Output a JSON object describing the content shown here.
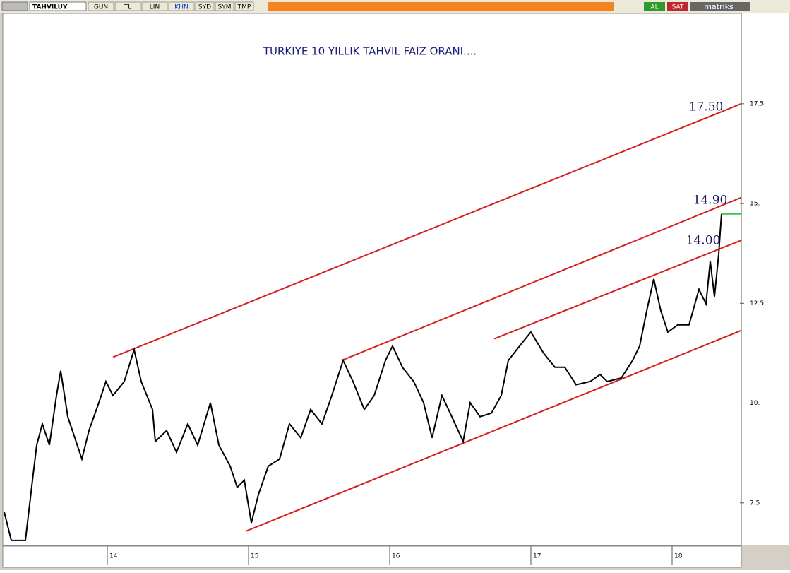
{
  "toolbar": {
    "symbol": "TAHVILUY",
    "buttons": [
      "GUN",
      "TL",
      "LIN",
      "KHN",
      "SYD",
      "SYM",
      "TMP"
    ],
    "buy": "AL",
    "sell": "SAT",
    "brand": "matriks"
  },
  "chart_data": {
    "type": "line",
    "title": "TURKIYE 10 YILLIK TAHVIL FAIZ ORANI....",
    "x": [
      13.27,
      13.32,
      13.42,
      13.47,
      13.5,
      13.54,
      13.59,
      13.64,
      13.67,
      13.72,
      13.77,
      13.82,
      13.87,
      13.94,
      13.99,
      14.04,
      14.12,
      14.19,
      14.24,
      14.32,
      14.34,
      14.42,
      14.49,
      14.57,
      14.64,
      14.73,
      14.79,
      14.87,
      14.92,
      14.97,
      15.02,
      15.07,
      15.14,
      15.22,
      15.29,
      15.37,
      15.44,
      15.52,
      15.59,
      15.67,
      15.74,
      15.82,
      15.89,
      15.97,
      16.02,
      16.09,
      16.17,
      16.24,
      16.3,
      16.37,
      16.44,
      16.52,
      16.57,
      16.64,
      16.72,
      16.79,
      16.84,
      16.92,
      17.0,
      17.09,
      17.17,
      17.24,
      17.32,
      17.42,
      17.49,
      17.54,
      17.64,
      17.72,
      17.77,
      17.82,
      17.87,
      17.92,
      17.97,
      18.04,
      18.12,
      18.19,
      18.24,
      18.27,
      18.3,
      18.33,
      18.34,
      18.35
    ],
    "series": [
      {
        "color": "#000000",
        "values": [
          7.27,
          6.56,
          6.56,
          8.07,
          8.95,
          9.48,
          8.95,
          10.19,
          10.81,
          9.66,
          9.13,
          8.6,
          9.31,
          10.01,
          10.54,
          10.19,
          10.54,
          11.34,
          10.54,
          9.84,
          9.04,
          9.31,
          8.77,
          9.48,
          8.95,
          10.01,
          8.95,
          8.42,
          7.89,
          8.07,
          7.0,
          7.71,
          8.42,
          8.6,
          9.48,
          9.13,
          9.84,
          9.48,
          10.19,
          11.07,
          10.54,
          9.84,
          10.19,
          11.07,
          11.43,
          10.9,
          10.54,
          10.01,
          9.13,
          10.19,
          9.66,
          9.04,
          10.01,
          9.66,
          9.75,
          10.19,
          11.07,
          11.43,
          11.78,
          11.25,
          10.9,
          10.9,
          10.46,
          10.54,
          10.72,
          10.54,
          10.63,
          11.07,
          11.43,
          12.31,
          13.11,
          12.31,
          11.78,
          11.96,
          11.96,
          12.85,
          12.49,
          13.55,
          12.67,
          13.73,
          14.26,
          14.74
        ]
      }
    ],
    "trendlines": [
      {
        "color": "#d42020",
        "x": [
          14.04,
          18.49
        ],
        "values": [
          11.15,
          17.5
        ]
      },
      {
        "color": "#d42020",
        "x": [
          15.66,
          18.49
        ],
        "values": [
          11.07,
          15.15
        ]
      },
      {
        "color": "#d42020",
        "x": [
          16.74,
          18.49
        ],
        "values": [
          11.61,
          14.08
        ]
      },
      {
        "color": "#d42020",
        "x": [
          14.98,
          18.49
        ],
        "values": [
          6.79,
          11.82
        ]
      }
    ],
    "reference_line": {
      "value": 14.74,
      "color": "#2ecc40"
    },
    "annotations": [
      "17.50",
      "14.90",
      "14.00"
    ],
    "xlim": [
      13.265,
      18.49
    ],
    "ylim": [
      6.47,
      19.78
    ],
    "xticks": [
      14,
      15,
      16,
      17,
      18
    ],
    "yticks": [
      {
        "value": 7.5,
        "label": "7.5"
      },
      {
        "value": 10,
        "label": "10."
      },
      {
        "value": 12.5,
        "label": "12.5"
      },
      {
        "value": 15,
        "label": "15."
      },
      {
        "value": 17.5,
        "label": "17.5"
      }
    ]
  }
}
